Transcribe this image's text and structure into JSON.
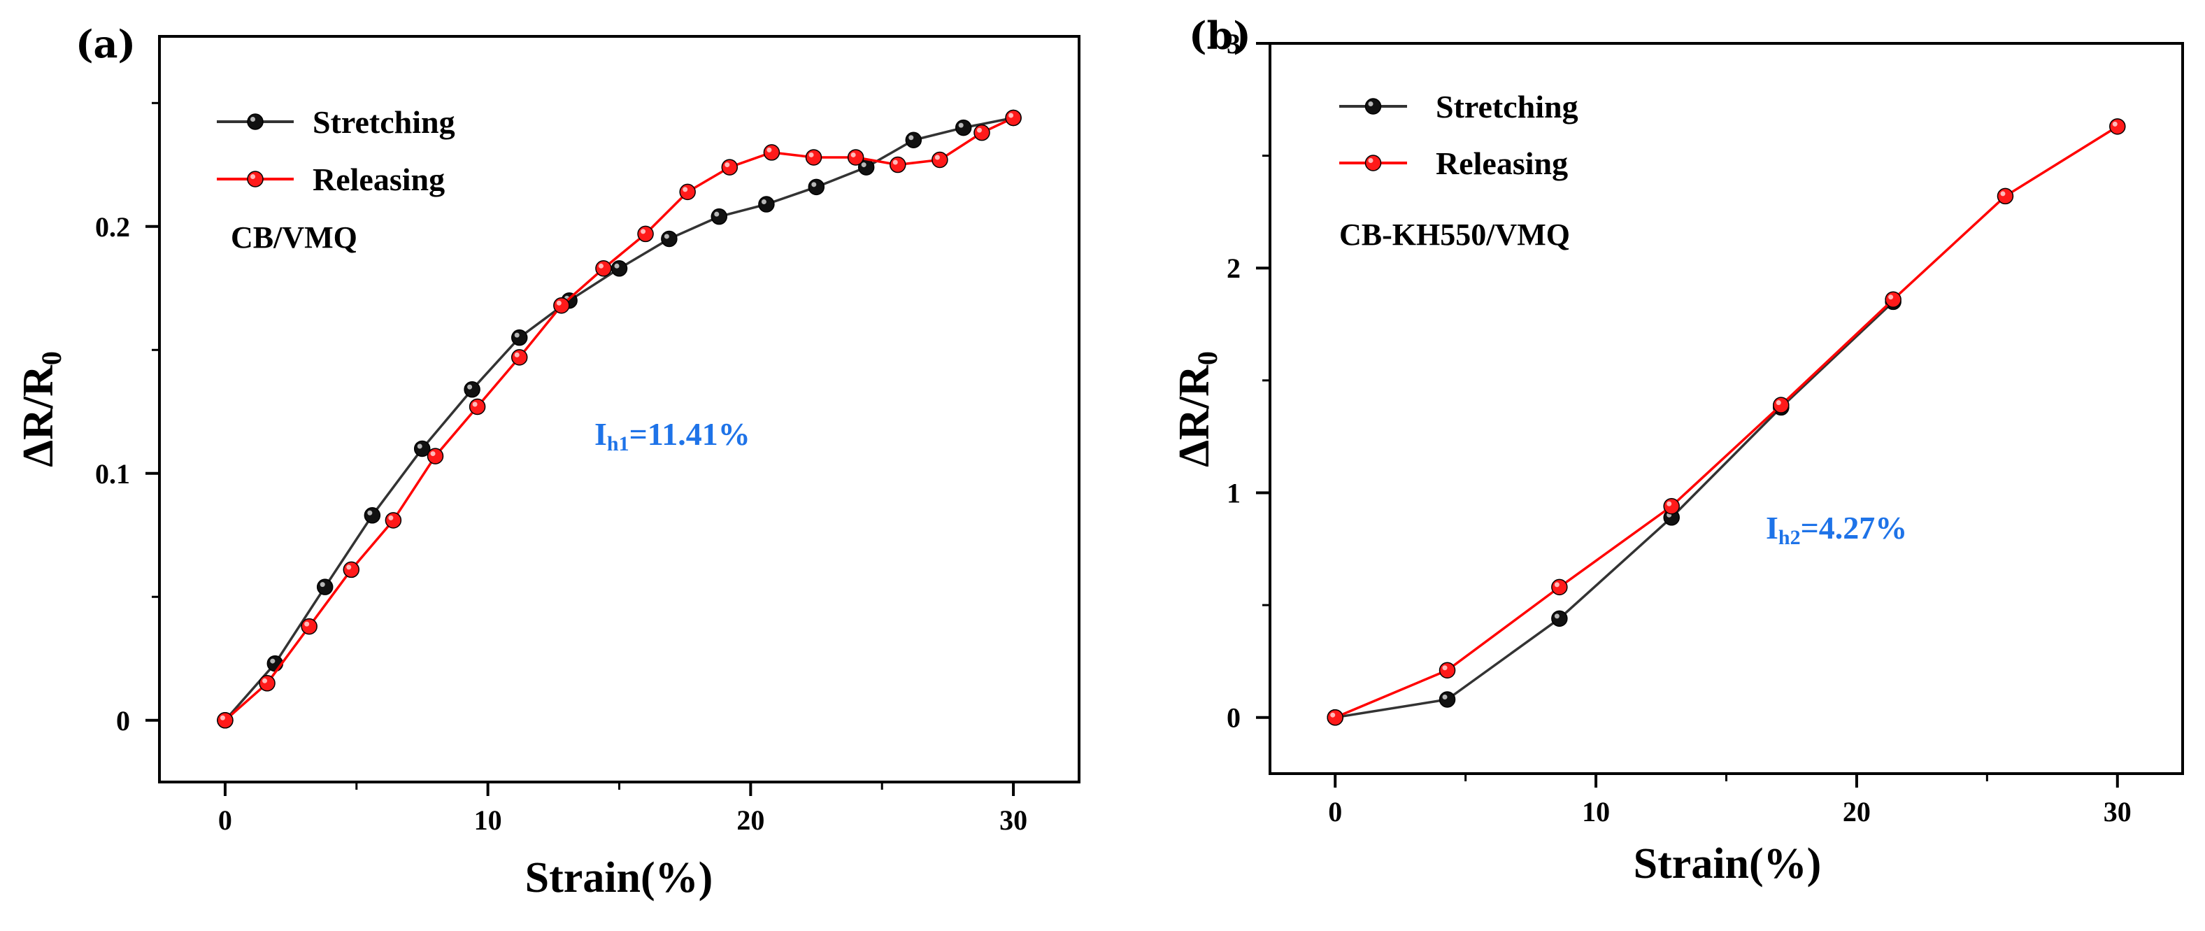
{
  "chart_data": [
    {
      "type": "line",
      "panel_label": "(a)",
      "title": "",
      "xlabel": "Strain(%)",
      "ylabel": "ΔR/R",
      "ylabel_sub": "0",
      "xlim": [
        -2.5,
        32.5
      ],
      "ylim": [
        -0.025,
        0.277
      ],
      "xticks": [
        0,
        10,
        20,
        30
      ],
      "xtick_labels": [
        "0",
        "10",
        "20",
        "30"
      ],
      "yticks": [
        0,
        0.1,
        0.2
      ],
      "ytick_labels": [
        "0",
        "0.1",
        "0.2"
      ],
      "grid": false,
      "legend_position": "top-left",
      "annotation": "CB/VMQ",
      "hysteresis": {
        "base": "I",
        "sub": "h1",
        "value": "=11.41%"
      },
      "series": [
        {
          "name": "Stretching",
          "color": "#333333",
          "marker_color": "#111111",
          "x": [
            0,
            1.9,
            3.8,
            5.6,
            7.5,
            9.4,
            11.2,
            13.1,
            15.0,
            16.9,
            18.8,
            20.6,
            22.5,
            24.4,
            26.2,
            28.1,
            30.0
          ],
          "y": [
            0,
            0.023,
            0.054,
            0.083,
            0.11,
            0.134,
            0.155,
            0.17,
            0.183,
            0.195,
            0.204,
            0.209,
            0.216,
            0.224,
            0.235,
            0.24,
            0.244
          ]
        },
        {
          "name": "Releasing",
          "color": "#ff0000",
          "marker_color": "#ff1a1a",
          "x": [
            0,
            1.6,
            3.2,
            4.8,
            6.4,
            8.0,
            9.6,
            11.2,
            12.8,
            14.4,
            16.0,
            17.6,
            19.2,
            20.8,
            22.4,
            24.0,
            25.6,
            27.2,
            28.8,
            30.0
          ],
          "y": [
            0,
            0.015,
            0.038,
            0.061,
            0.081,
            0.107,
            0.127,
            0.147,
            0.168,
            0.183,
            0.197,
            0.214,
            0.224,
            0.23,
            0.228,
            0.228,
            0.225,
            0.227,
            0.238,
            0.244
          ]
        }
      ]
    },
    {
      "type": "line",
      "panel_label": "(b)",
      "title": "",
      "xlabel": "Strain(%)",
      "ylabel": "ΔR/R",
      "ylabel_sub": "0",
      "xlim": [
        -2.5,
        32.5
      ],
      "ylim": [
        -0.25,
        3.0
      ],
      "xticks": [
        0,
        10,
        20,
        30
      ],
      "xtick_labels": [
        "0",
        "10",
        "20",
        "30"
      ],
      "yticks": [
        0,
        1,
        2,
        3
      ],
      "ytick_labels": [
        "0",
        "1",
        "2",
        "3"
      ],
      "grid": false,
      "legend_position": "top-left",
      "annotation": "CB-KH550/VMQ",
      "hysteresis": {
        "base": "I",
        "sub": "h2",
        "value": "=4.27%"
      },
      "series": [
        {
          "name": "Stretching",
          "color": "#333333",
          "marker_color": "#111111",
          "x": [
            0,
            4.3,
            8.6,
            12.9,
            17.1,
            21.4
          ],
          "y": [
            0,
            0.08,
            0.44,
            0.89,
            1.38,
            1.85
          ]
        },
        {
          "name": "Releasing",
          "color": "#ff0000",
          "marker_color": "#ff1a1a",
          "x": [
            0,
            4.3,
            8.6,
            12.9,
            17.1,
            21.4,
            25.7,
            30.0
          ],
          "y": [
            0,
            0.21,
            0.58,
            0.94,
            1.39,
            1.86,
            2.32,
            2.63
          ]
        }
      ]
    }
  ]
}
